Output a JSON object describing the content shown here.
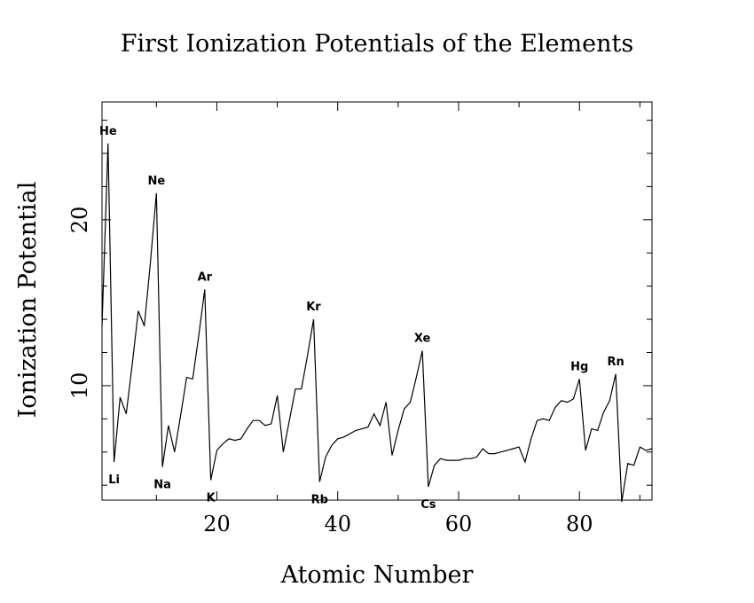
{
  "chart_data": {
    "type": "line",
    "title": "First Ionization Potentials of the Elements",
    "xlabel": "Atomic Number",
    "ylabel": "Ionization Potential",
    "xlim": [
      1,
      92
    ],
    "ylim": [
      3.1,
      27.1
    ],
    "x_ticks": [
      20,
      40,
      60,
      80
    ],
    "y_ticks": [
      10,
      20
    ],
    "x": [
      1,
      2,
      3,
      4,
      5,
      6,
      7,
      8,
      9,
      10,
      11,
      12,
      13,
      14,
      15,
      16,
      17,
      18,
      19,
      20,
      21,
      22,
      23,
      24,
      25,
      26,
      27,
      28,
      29,
      30,
      31,
      32,
      33,
      34,
      35,
      36,
      37,
      38,
      39,
      40,
      41,
      42,
      43,
      44,
      45,
      46,
      47,
      48,
      49,
      50,
      51,
      52,
      53,
      54,
      55,
      56,
      57,
      58,
      59,
      60,
      61,
      62,
      63,
      64,
      65,
      66,
      67,
      68,
      69,
      70,
      71,
      72,
      73,
      74,
      75,
      76,
      77,
      78,
      79,
      80,
      81,
      82,
      83,
      84,
      85,
      86,
      87,
      88,
      89,
      90,
      91,
      92
    ],
    "values": [
      13.6,
      24.6,
      5.4,
      9.3,
      8.3,
      11.3,
      14.5,
      13.6,
      17.4,
      21.6,
      5.1,
      7.6,
      6.0,
      8.2,
      10.5,
      10.4,
      13.0,
      15.8,
      4.3,
      6.1,
      6.5,
      6.8,
      6.7,
      6.8,
      7.4,
      7.9,
      7.9,
      7.6,
      7.7,
      9.4,
      6.0,
      7.9,
      9.8,
      9.8,
      11.8,
      14.0,
      4.2,
      5.7,
      6.4,
      6.8,
      6.9,
      7.1,
      7.3,
      7.4,
      7.5,
      8.3,
      7.6,
      9.0,
      5.8,
      7.3,
      8.6,
      9.0,
      10.5,
      12.1,
      3.9,
      5.2,
      5.6,
      5.5,
      5.5,
      5.5,
      5.6,
      5.6,
      5.7,
      6.2,
      5.9,
      5.9,
      6.0,
      6.1,
      6.2,
      6.3,
      5.4,
      6.8,
      7.9,
      8.0,
      7.9,
      8.7,
      9.1,
      9.0,
      9.2,
      10.4,
      6.1,
      7.4,
      7.3,
      8.4,
      9.1,
      10.7,
      3.0,
      5.3,
      5.2,
      6.3,
      6.1,
      6.2
    ],
    "annotations": [
      {
        "label": "He",
        "x": 2,
        "position": "above"
      },
      {
        "label": "Li",
        "x": 3,
        "position": "below"
      },
      {
        "label": "Ne",
        "x": 10,
        "position": "above"
      },
      {
        "label": "Na",
        "x": 11,
        "position": "below"
      },
      {
        "label": "Ar",
        "x": 18,
        "position": "above"
      },
      {
        "label": "K",
        "x": 19,
        "position": "below"
      },
      {
        "label": "Kr",
        "x": 36,
        "position": "above"
      },
      {
        "label": "Rb",
        "x": 37,
        "position": "below"
      },
      {
        "label": "Xe",
        "x": 54,
        "position": "above"
      },
      {
        "label": "Cs",
        "x": 55,
        "position": "below"
      },
      {
        "label": "Hg",
        "x": 80,
        "position": "above"
      },
      {
        "label": "Rn",
        "x": 86,
        "position": "above"
      }
    ],
    "grid": false,
    "legend": "none",
    "line_color": "#000000"
  }
}
